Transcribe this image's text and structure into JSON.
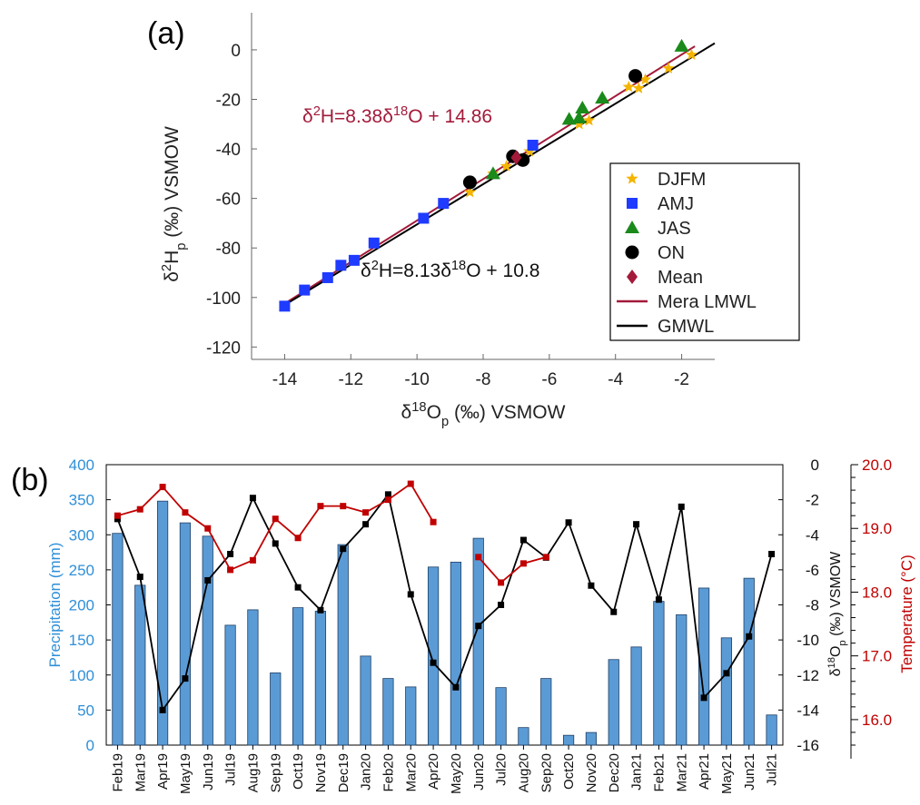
{
  "panels": {
    "a": "(a)",
    "b": "(b)"
  },
  "chart_data": [
    {
      "type": "scatter",
      "panel": "(a)",
      "xlabel": "δ18Op (‰) VSMOW",
      "ylabel": "δ2Hp (‰) VSMOW",
      "xlim": [
        -15,
        -1
      ],
      "ylim": [
        -125,
        15
      ],
      "xticks": [
        -14,
        -12,
        -10,
        -8,
        -6,
        -4,
        -2
      ],
      "yticks": [
        0,
        -20,
        -40,
        -60,
        -80,
        -100,
        -120
      ],
      "colors": {
        "DJFM": "#f4b400",
        "AMJ": "#1f3bff",
        "JAS": "#1a8a1a",
        "ON": "#000000",
        "Mean": "#a31a3a",
        "Mera LMWL": "#a31a3a",
        "GMWL": "#000000"
      },
      "series": [
        {
          "name": "DJFM",
          "marker": "star",
          "x": [
            -8.4,
            -7.7,
            -7.3,
            -6.6,
            -5.1,
            -4.8,
            -3.6,
            -3.3,
            -3.1,
            -2.4,
            -1.7
          ],
          "y": [
            -57.5,
            -50,
            -47,
            -41,
            -30,
            -28.5,
            -15,
            -15.5,
            -12,
            -7.5,
            -2
          ]
        },
        {
          "name": "AMJ",
          "marker": "square",
          "x": [
            -14,
            -13.4,
            -12.7,
            -12.3,
            -11.9,
            -11.3,
            -9.8,
            -9.2,
            -6.5
          ],
          "y": [
            -103.5,
            -97,
            -92,
            -87,
            -85,
            -78,
            -68,
            -62,
            -38.5
          ]
        },
        {
          "name": "JAS",
          "marker": "triangle",
          "x": [
            -7.7,
            -5.4,
            -5.1,
            -5.0,
            -4.4,
            -2.0
          ],
          "y": [
            -50,
            -28,
            -27.5,
            -23.5,
            -19.5,
            1.5
          ]
        },
        {
          "name": "ON",
          "marker": "circle",
          "x": [
            -8.4,
            -7.1,
            -6.8,
            -3.4
          ],
          "y": [
            -53.5,
            -43,
            -44.5,
            -10.5
          ]
        },
        {
          "name": "Mean",
          "marker": "diamond",
          "x": [
            -7.0
          ],
          "y": [
            -43.5
          ]
        }
      ],
      "lines": [
        {
          "name": "Mera LMWL",
          "slope": 8.38,
          "intercept": 14.86,
          "x": [
            -14,
            -1.6
          ],
          "label": "δ2H=8.38δ18O + 14.86"
        },
        {
          "name": "GMWL",
          "slope": 8.13,
          "intercept": 10.8,
          "x": [
            -14,
            -1.0
          ],
          "label": "δ2H=8.13δ18O + 10.8"
        }
      ],
      "legend": "right",
      "grid": false
    },
    {
      "type": "bar+line",
      "panel": "(b)",
      "categories": [
        "Feb19",
        "Mar19",
        "Apr19",
        "May19",
        "Jun19",
        "Jul19",
        "Aug19",
        "Sep19",
        "Oct19",
        "Nov19",
        "Dec19",
        "Jan20",
        "Feb20",
        "Mar20",
        "Apr20",
        "May20",
        "Jun20",
        "Jul20",
        "Aug20",
        "Sep20",
        "Oct20",
        "Nov20",
        "Dec20",
        "Jan21",
        "Feb21",
        "Mar21",
        "Apr21",
        "May21",
        "Jun21",
        "Jul21"
      ],
      "ylabel_left": "Precipitation (mm)",
      "ylabel_right1": "δ18Op (‰) VSMOW",
      "ylabel_right2": "Temperature (°C)",
      "ylim_left": [
        0,
        400
      ],
      "yticks_left": [
        0,
        50,
        100,
        150,
        200,
        250,
        300,
        350,
        400
      ],
      "ylim_right1": [
        -16,
        0
      ],
      "yticks_right1": [
        0,
        -2,
        -4,
        -6,
        -8,
        -10,
        -12,
        -14,
        -16
      ],
      "ylim_right2": [
        15.6,
        20.0
      ],
      "yticks_right2": [
        "16.0",
        "17.0",
        "18.0",
        "19.0",
        "20.0"
      ],
      "colors": {
        "precip": "#5b9bd5",
        "precip_axis": "#2f8fd8",
        "d18O": "#000000",
        "temp": "#c00000"
      },
      "precipitation": [
        302,
        228,
        348,
        317,
        298,
        171,
        193,
        103,
        196,
        191,
        286,
        127,
        95,
        83,
        254,
        261,
        295,
        82,
        25,
        95,
        14,
        18,
        122,
        140,
        205,
        186,
        224,
        153,
        238,
        43
      ],
      "d18O": [
        -3.1,
        -6.4,
        -14.0,
        -12.2,
        -6.6,
        -5.1,
        -1.9,
        -4.5,
        -7.0,
        -8.3,
        -4.8,
        -3.4,
        -1.7,
        -7.4,
        -11.3,
        -12.7,
        -9.2,
        -8.0,
        -4.3,
        -5.3,
        -3.3,
        -6.9,
        -8.4,
        -3.4,
        -7.7,
        -2.4,
        -13.3,
        -11.9,
        -9.8,
        -5.1
      ],
      "temperature": [
        19.2,
        19.3,
        19.65,
        19.25,
        19.0,
        18.35,
        18.5,
        19.15,
        18.85,
        19.35,
        19.35,
        19.25,
        19.45,
        19.7,
        19.1,
        null,
        18.55,
        18.15,
        18.45,
        18.55,
        null,
        null,
        null,
        null,
        null,
        null,
        null,
        null,
        null,
        null
      ],
      "legend": "none",
      "grid": false
    }
  ]
}
